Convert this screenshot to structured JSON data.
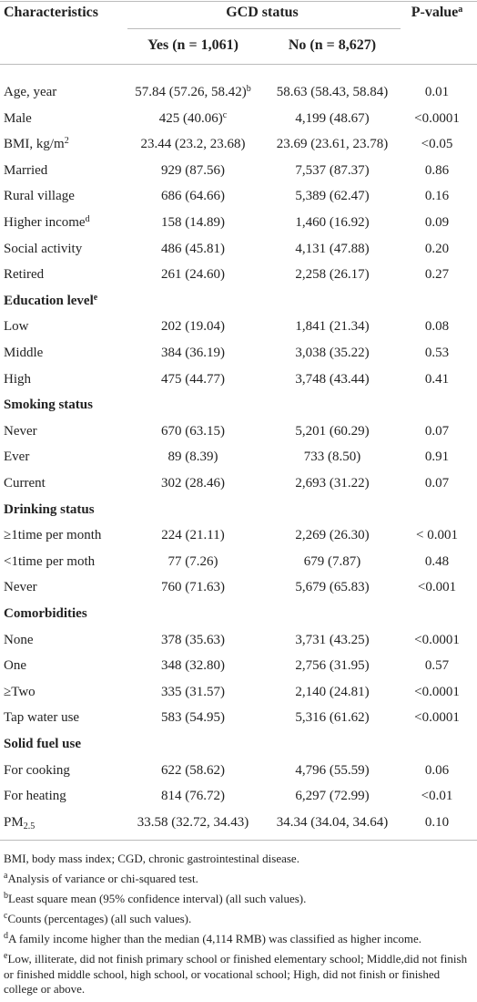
{
  "table": {
    "header": {
      "characteristics": "Characteristics",
      "group": "GCD status",
      "p": "P-value",
      "p_sup": "a",
      "yes": "Yes (n = 1,061)",
      "no": "No (n = 8,627)"
    },
    "rows": [
      {
        "label": "Age, year",
        "yes": "57.84 (57.26, 58.42)",
        "yes_sup": "b",
        "no": "58.63 (58.43, 58.84)",
        "p": "0.01"
      },
      {
        "label": "Male",
        "yes": "425 (40.06)",
        "yes_sup": "c",
        "no": "4,199 (48.67)",
        "p": "<0.0001"
      },
      {
        "label": "BMI, kg/m",
        "label_sup": "2",
        "yes": "23.44 (23.2, 23.68)",
        "no": "23.69 (23.61, 23.78)",
        "p": "<0.05"
      },
      {
        "label": "Married",
        "yes": "929 (87.56)",
        "no": "7,537 (87.37)",
        "p": "0.86"
      },
      {
        "label": "Rural village",
        "yes": "686 (64.66)",
        "no": "5,389 (62.47)",
        "p": "0.16"
      },
      {
        "label": "Higher income",
        "label_sup": "d",
        "yes": "158 (14.89)",
        "no": "1,460 (16.92)",
        "p": "0.09"
      },
      {
        "label": "Social activity",
        "yes": "486 (45.81)",
        "no": "4,131 (47.88)",
        "p": "0.20"
      },
      {
        "label": "Retired",
        "yes": "261 (24.60)",
        "no": "2,258 (26.17)",
        "p": "0.27"
      },
      {
        "section": "Education level",
        "section_sup": "e"
      },
      {
        "label": "Low",
        "yes": "202 (19.04)",
        "no": "1,841 (21.34)",
        "p": "0.08"
      },
      {
        "label": "Middle",
        "yes": "384 (36.19)",
        "no": "3,038 (35.22)",
        "p": "0.53"
      },
      {
        "label": "High",
        "yes": "475 (44.77)",
        "no": "3,748 (43.44)",
        "p": "0.41"
      },
      {
        "section": "Smoking status"
      },
      {
        "label": "Never",
        "yes": "670 (63.15)",
        "no": "5,201 (60.29)",
        "p": "0.07"
      },
      {
        "label": "Ever",
        "yes": "89 (8.39)",
        "no": "733 (8.50)",
        "p": "0.91"
      },
      {
        "label": "Current",
        "yes": "302 (28.46)",
        "no": "2,693 (31.22)",
        "p": "0.07"
      },
      {
        "section": "Drinking status"
      },
      {
        "label": "≥1time per month",
        "yes": "224 (21.11)",
        "no": "2,269 (26.30)",
        "p": "< 0.001"
      },
      {
        "label": "<1time per moth",
        "yes": "77 (7.26)",
        "no": "679 (7.87)",
        "p": "0.48"
      },
      {
        "label": "Never",
        "yes": "760 (71.63)",
        "no": "5,679 (65.83)",
        "p": "<0.001"
      },
      {
        "section": "Comorbidities"
      },
      {
        "label": "None",
        "yes": "378 (35.63)",
        "no": "3,731 (43.25)",
        "p": "<0.0001"
      },
      {
        "label": "One",
        "yes": "348 (32.80)",
        "no": "2,756 (31.95)",
        "p": "0.57"
      },
      {
        "label": "≥Two",
        "yes": "335 (31.57)",
        "no": "2,140 (24.81)",
        "p": "<0.0001"
      },
      {
        "label": "Tap water use",
        "yes": "583 (54.95)",
        "no": "5,316 (61.62)",
        "p": "<0.0001"
      },
      {
        "section": "Solid fuel use"
      },
      {
        "label": "For cooking",
        "yes": "622 (58.62)",
        "no": "4,796 (55.59)",
        "p": "0.06"
      },
      {
        "label": "For heating",
        "yes": "814 (76.72)",
        "no": "6,297 (72.99)",
        "p": "<0.01"
      },
      {
        "label": "PM",
        "label_sub": "2.5",
        "yes": "33.58 (32.72, 34.43)",
        "no": "34.34 (34.04, 34.64)",
        "p": "0.10"
      }
    ],
    "footnotes": [
      {
        "text": "BMI, body mass index; CGD, chronic gastrointestinal disease."
      },
      {
        "marker": "a",
        "text": "Analysis of variance or chi-squared test."
      },
      {
        "marker": "b",
        "text": "Least square mean (95% confidence interval) (all such values)."
      },
      {
        "marker": "c",
        "text": "Counts (percentages) (all such values)."
      },
      {
        "marker": "d",
        "text": "A family income higher than the median (4,114 RMB) was classified as higher income."
      },
      {
        "marker": "e",
        "text": "Low, illiterate, did not finish primary school or finished elementary school; Middle,did not finish or finished middle school, high school, or vocational school; High, did not finish or finished college or above."
      }
    ]
  }
}
